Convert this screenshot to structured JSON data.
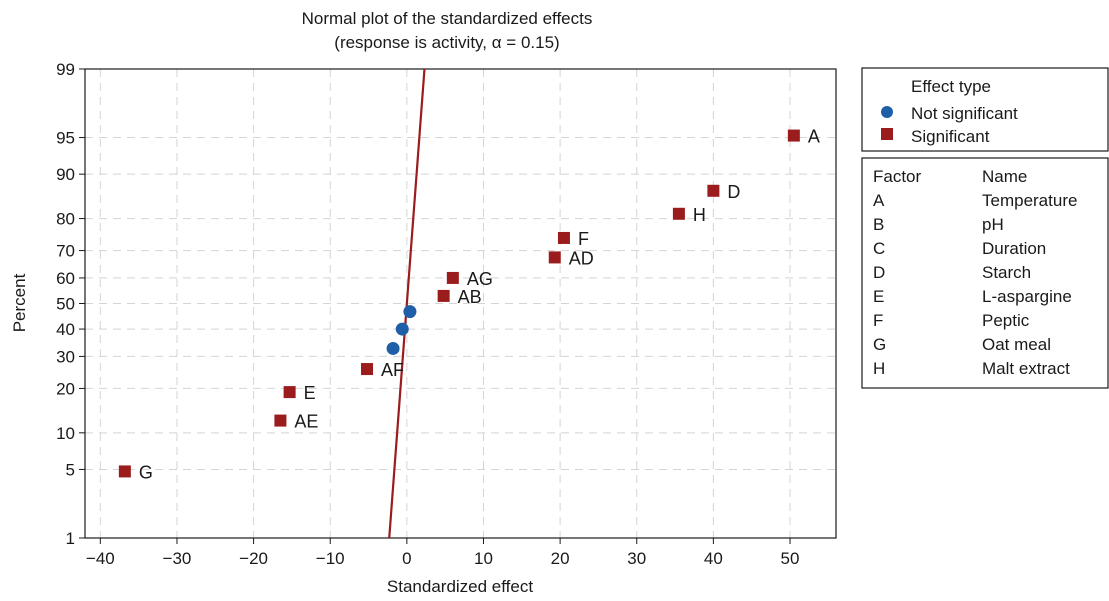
{
  "chart_data": {
    "type": "scatter",
    "title": "Normal plot of the standardized effects",
    "subtitle": "(response is activity, α = 0.15)",
    "xlabel": "Standardized effect",
    "ylabel": "Percent",
    "xlim": [
      -42,
      56
    ],
    "x_ticks": [
      -40,
      -30,
      -20,
      -10,
      0,
      10,
      20,
      30,
      40,
      50
    ],
    "x_tick_labels": [
      "−40",
      "−30",
      "−20",
      "−10",
      "0",
      "10",
      "20",
      "30",
      "40",
      "50"
    ],
    "y_scale": "normal-probability",
    "ylim": [
      1,
      99
    ],
    "y_ticks": [
      1,
      5,
      10,
      20,
      30,
      40,
      50,
      60,
      70,
      80,
      90,
      95,
      99
    ],
    "y_tick_labels": [
      "1",
      "5",
      "10",
      "20",
      "30",
      "40",
      "50",
      "60",
      "70",
      "80",
      "90",
      "95",
      "99"
    ],
    "grid": true,
    "reference_line": {
      "x_at_1": -2.3,
      "x_at_99": 2.3,
      "color": "#9b1c1c"
    },
    "series": [
      {
        "name": "Significant",
        "marker": "square",
        "color": "#9b1c1c",
        "points": [
          {
            "label": "A",
            "x": 50.5,
            "y": 95.2
          },
          {
            "label": "D",
            "x": 40.0,
            "y": 86.8
          },
          {
            "label": "H",
            "x": 35.5,
            "y": 81.3
          },
          {
            "label": "F",
            "x": 20.5,
            "y": 74.2
          },
          {
            "label": "AD",
            "x": 19.3,
            "y": 67.6
          },
          {
            "label": "AG",
            "x": 6.0,
            "y": 60.0
          },
          {
            "label": "AB",
            "x": 4.8,
            "y": 53.0
          },
          {
            "label": "AF",
            "x": -5.2,
            "y": 25.8
          },
          {
            "label": "E",
            "x": -15.3,
            "y": 19.0
          },
          {
            "label": "AE",
            "x": -16.5,
            "y": 12.3
          },
          {
            "label": "G",
            "x": -36.8,
            "y": 4.8
          }
        ]
      },
      {
        "name": "Not significant",
        "marker": "circle",
        "color": "#1f5fa8",
        "points": [
          {
            "label": "",
            "x": 0.4,
            "y": 46.8
          },
          {
            "label": "",
            "x": -0.6,
            "y": 40.0
          },
          {
            "label": "",
            "x": -1.8,
            "y": 32.8
          }
        ]
      }
    ],
    "legend": {
      "title": "Effect type",
      "placement": "right",
      "entries": [
        {
          "label": "Not significant",
          "marker": "circle",
          "color": "#1f5fa8"
        },
        {
          "label": "Significant",
          "marker": "square",
          "color": "#9b1c1c"
        }
      ]
    },
    "factor_table": {
      "headers": [
        "Factor",
        "Name"
      ],
      "rows": [
        [
          "A",
          "Temperature"
        ],
        [
          "B",
          "pH"
        ],
        [
          "C",
          "Duration"
        ],
        [
          "D",
          "Starch"
        ],
        [
          "E",
          "L-aspargine"
        ],
        [
          "F",
          "Peptic"
        ],
        [
          "G",
          "Oat meal"
        ],
        [
          "H",
          "Malt extract"
        ]
      ]
    }
  }
}
